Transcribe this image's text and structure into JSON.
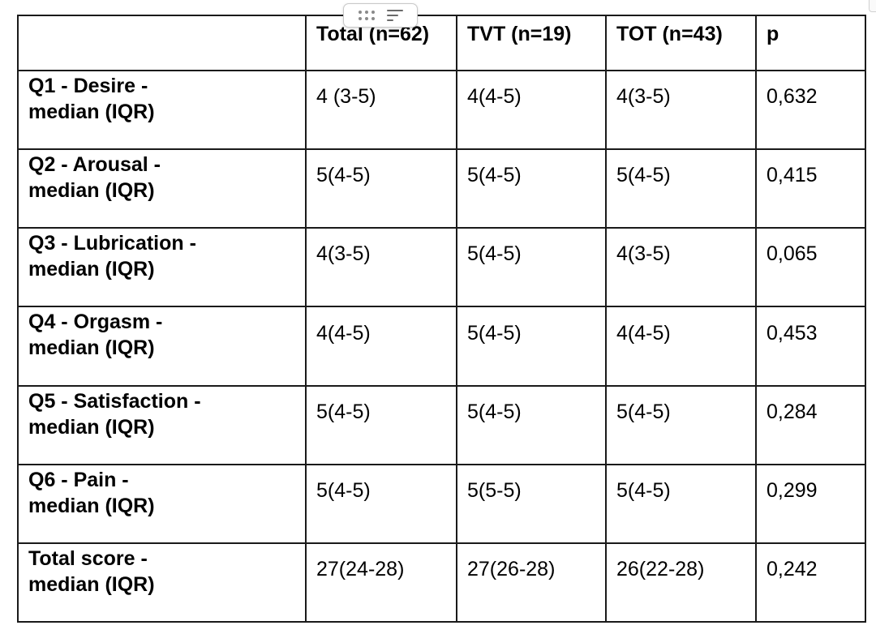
{
  "table": {
    "header": [
      "",
      "Total (n=62)",
      "TVT (n=19)",
      "TOT (n=43)",
      "p"
    ],
    "rows": [
      {
        "label_line1": "Q1 - Desire -",
        "label_line2": "median (IQR)",
        "total": "4 (3-5)",
        "tvt": "4(4-5)",
        "tot": "4(3-5)",
        "p": "0,632"
      },
      {
        "label_line1": "Q2 - Arousal -",
        "label_line2": "median (IQR)",
        "total": "5(4-5)",
        "tvt": "5(4-5)",
        "tot": "5(4-5)",
        "p": "0,415"
      },
      {
        "label_line1": "Q3 - Lubrication -",
        "label_line2": "median (IQR)",
        "total": "4(3-5)",
        "tvt": "5(4-5)",
        "tot": "4(3-5)",
        "p": "0,065"
      },
      {
        "label_line1": "Q4 - Orgasm -",
        "label_line2": "median (IQR)",
        "total": "4(4-5)",
        "tvt": "5(4-5)",
        "tot": "4(4-5)",
        "p": "0,453"
      },
      {
        "label_line1": "Q5 - Satisfaction -",
        "label_line2": "median (IQR)",
        "total": "5(4-5)",
        "tvt": "5(4-5)",
        "tot": "5(4-5)",
        "p": "0,284"
      },
      {
        "label_line1": "Q6 - Pain -",
        "label_line2": "median (IQR)",
        "total": "5(4-5)",
        "tvt": "5(5-5)",
        "tot": "5(4-5)",
        "p": "0,299"
      },
      {
        "label_line1": "Total score -",
        "label_line2": "median (IQR)",
        "total": "27(24-28)",
        "tvt": "27(26-28)",
        "tot": "26(22-28)",
        "p": "0,242"
      }
    ]
  },
  "toolbar": {
    "drag_icon": "drag-handle-icon",
    "sort_icon": "sort-lines-icon"
  }
}
